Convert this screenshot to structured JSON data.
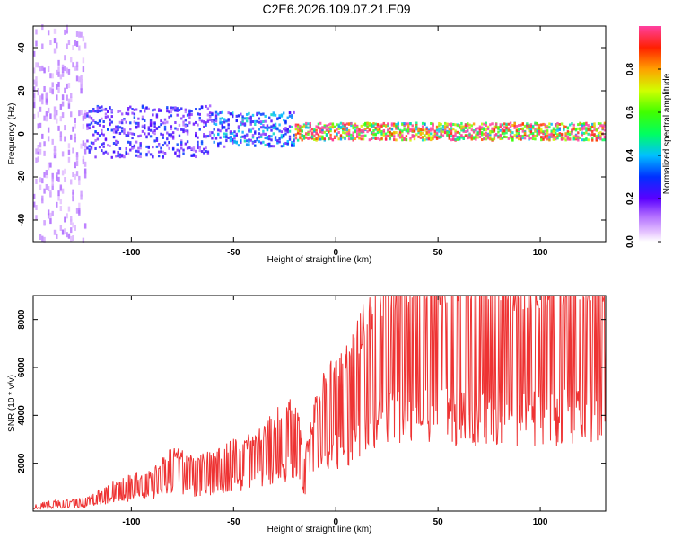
{
  "title": "C2E6.2026.109.07.21.E09",
  "chart_data": [
    {
      "type": "heatmap",
      "xlabel": "Height of straight line (km)",
      "ylabel": "Frequency (Hz)",
      "xlim": [
        -148,
        132
      ],
      "ylim": [
        -50,
        50
      ],
      "xticks": [
        -100,
        -50,
        0,
        50,
        100
      ],
      "yticks": [
        -40,
        -20,
        0,
        20,
        40
      ],
      "colorbar": {
        "label": "Normalized spectral amplitude",
        "range": [
          0,
          1
        ],
        "ticks": [
          0.0,
          0.2,
          0.4,
          0.6,
          0.8
        ],
        "tick_labels": [
          "0.0",
          "0.2",
          "0.4",
          "0.6",
          "0.8"
        ]
      },
      "bands": [
        {
          "x_range": [
            -148,
            -122
          ],
          "freq_center": 0,
          "freq_halfwidth": 50,
          "amplitude": 0.1
        },
        {
          "x_range": [
            -122,
            -60
          ],
          "freq_center": 1,
          "freq_halfwidth": 12,
          "amplitude": 0.25
        },
        {
          "x_range": [
            -60,
            -20
          ],
          "freq_center": 2,
          "freq_halfwidth": 8,
          "amplitude": 0.35
        },
        {
          "x_range": [
            -20,
            132
          ],
          "freq_center": 1,
          "freq_halfwidth": 4,
          "amplitude": 0.9
        }
      ]
    },
    {
      "type": "line",
      "xlabel": "Height of straight line (km)",
      "ylabel": "SNR (10 * v/v)",
      "xlim": [
        -148,
        132
      ],
      "ylim": [
        0,
        9000
      ],
      "xticks": [
        -100,
        -50,
        0,
        50,
        100
      ],
      "yticks": [
        2000,
        4000,
        6000,
        8000
      ],
      "series": [
        {
          "color": "#ee3333",
          "x": [
            -148,
            -140,
            -130,
            -120,
            -110,
            -100,
            -90,
            -80,
            -70,
            -60,
            -50,
            -40,
            -30,
            -25,
            -20,
            -15,
            -10,
            -5,
            0,
            5,
            10,
            15,
            20,
            25,
            30,
            40,
            50,
            60,
            70,
            80,
            90,
            100,
            110,
            120,
            132
          ],
          "y": [
            200,
            280,
            300,
            400,
            800,
            1000,
            1100,
            1700,
            1500,
            1600,
            1900,
            2100,
            2600,
            3000,
            3100,
            1600,
            3000,
            3800,
            4300,
            4500,
            5000,
            5800,
            6300,
            6600,
            6700,
            6800,
            6900,
            6700,
            6800,
            6900,
            6600,
            6700,
            6800,
            6700,
            6800
          ]
        }
      ]
    }
  ]
}
